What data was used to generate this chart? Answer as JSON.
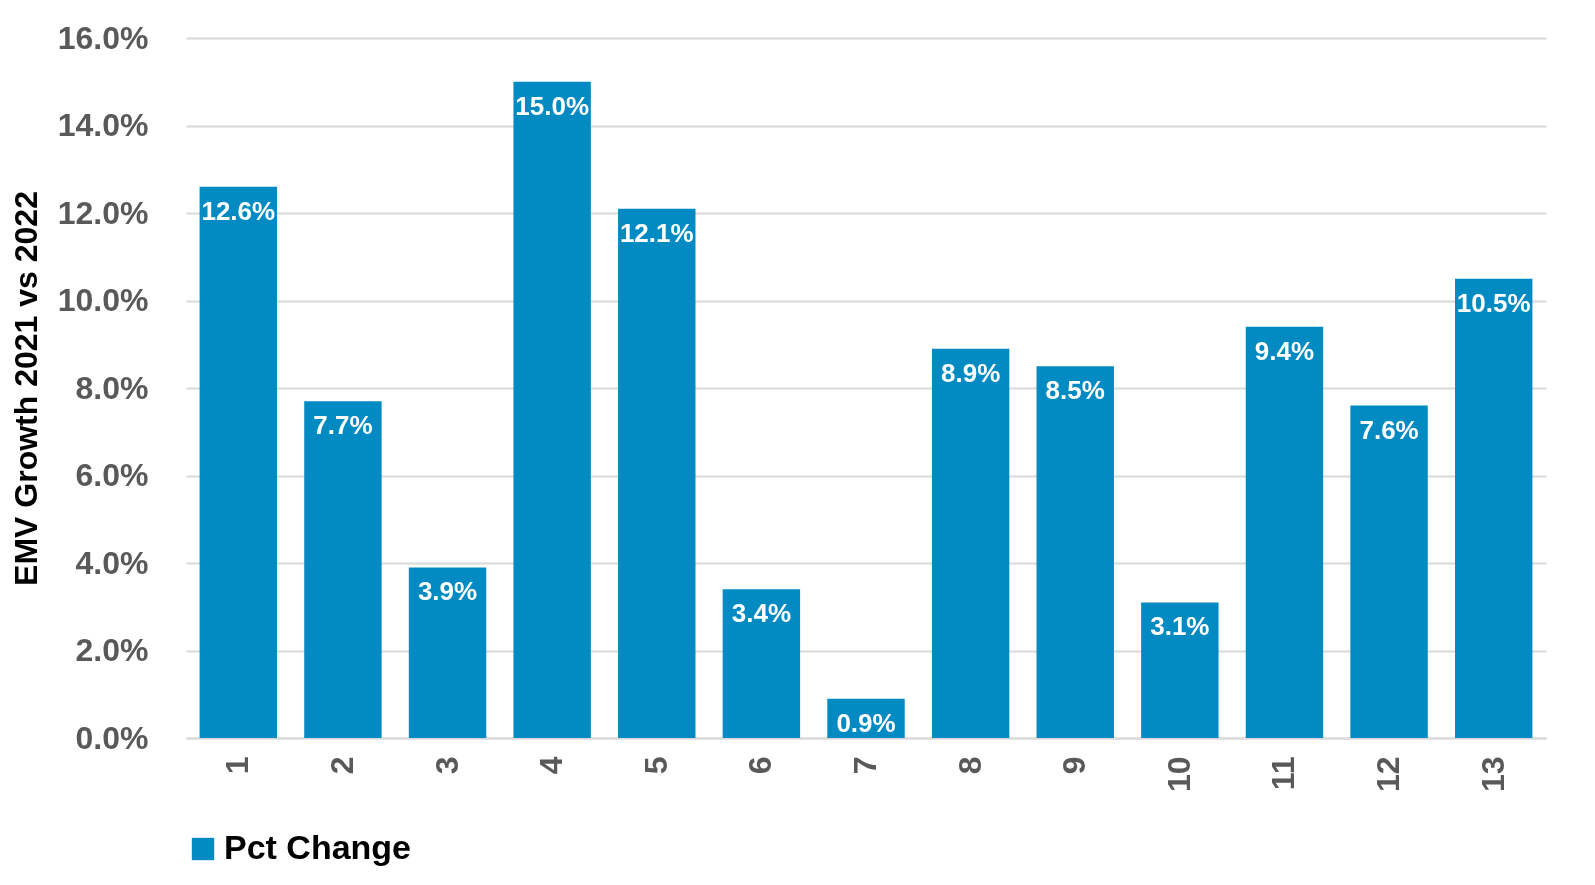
{
  "chart_data": {
    "type": "bar",
    "ylabel": "EMV Growth 2021 vs 2022",
    "categories": [
      "1",
      "2",
      "3",
      "4",
      "5",
      "6",
      "7",
      "8",
      "9",
      "10",
      "11",
      "12",
      "13"
    ],
    "series": [
      {
        "name": "Pct Change",
        "color": "#028ac2",
        "values": [
          12.6,
          7.7,
          3.9,
          15.0,
          12.1,
          3.4,
          0.9,
          8.9,
          8.5,
          3.1,
          9.4,
          7.6,
          10.5
        ],
        "value_labels": [
          "12.6%",
          "7.7%",
          "3.9%",
          "15.0%",
          "12.1%",
          "3.4%",
          "0.9%",
          "8.9%",
          "8.5%",
          "3.1%",
          "9.4%",
          "7.6%",
          "10.5%"
        ]
      }
    ],
    "ylim": [
      0,
      16
    ],
    "yticks": [
      {
        "value": 0,
        "label": "0.0%"
      },
      {
        "value": 2,
        "label": "2.0%"
      },
      {
        "value": 4,
        "label": "4.0%"
      },
      {
        "value": 6,
        "label": "6.0%"
      },
      {
        "value": 8,
        "label": "8.0%"
      },
      {
        "value": 10,
        "label": "10.0%"
      },
      {
        "value": 12,
        "label": "12.0%"
      },
      {
        "value": 14,
        "label": "14.0%"
      },
      {
        "value": 16,
        "label": "16.0%"
      }
    ],
    "grid": "y",
    "legend": "bottom"
  }
}
